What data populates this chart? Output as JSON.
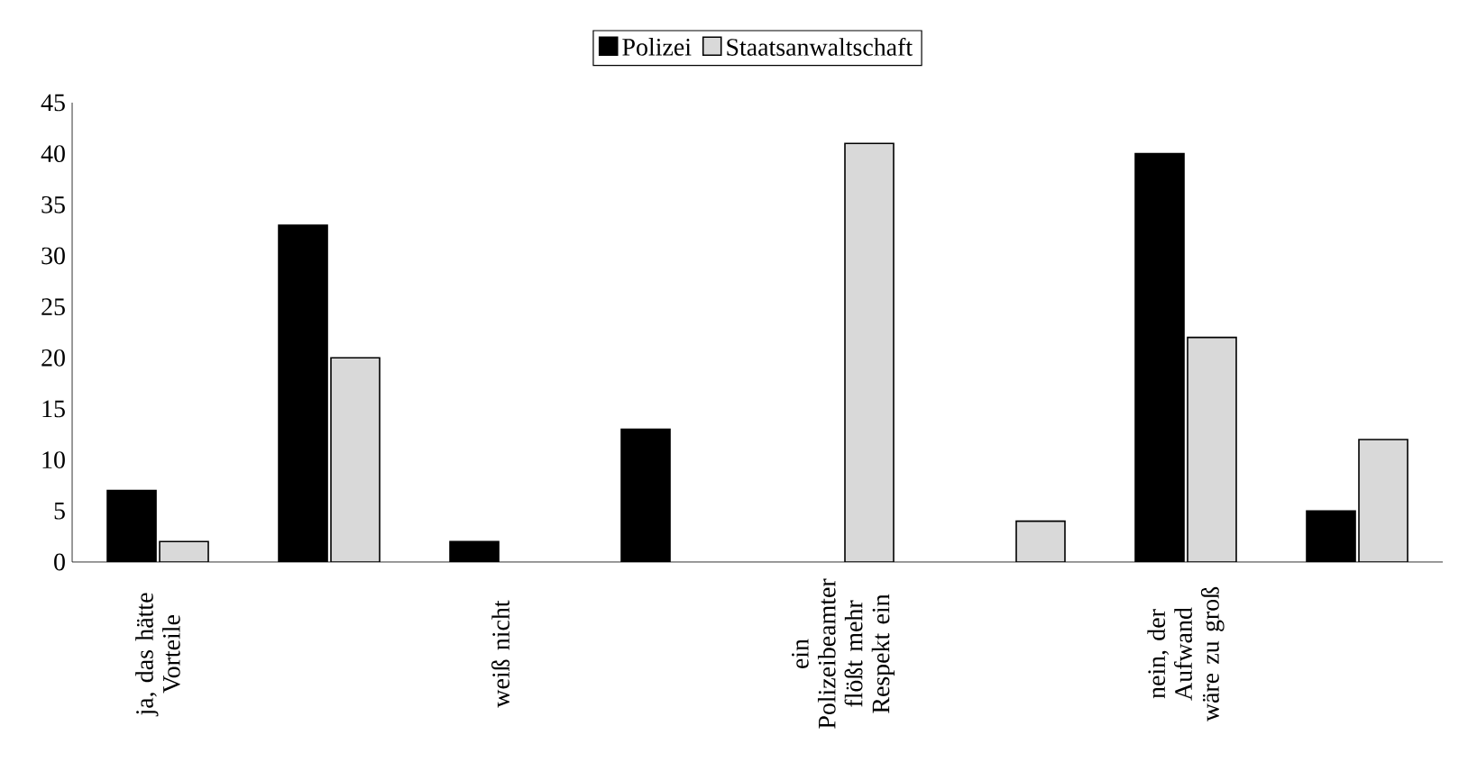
{
  "chart_data": {
    "type": "bar",
    "categories": [
      "ja, das hätte Vorteile",
      null,
      "weiß nicht",
      null,
      "ein Polizeibeamter flößt mehr Respekt ein",
      null,
      "nein, der Aufwand wäre zu groß",
      null
    ],
    "series": [
      {
        "name": "Polizei",
        "color": "#000000",
        "values": [
          7,
          33,
          2,
          13,
          null,
          null,
          40,
          5
        ]
      },
      {
        "name": "Staatsanwaltschaft",
        "color": "#d9d9d9",
        "values": [
          2,
          20,
          null,
          null,
          41,
          4,
          22,
          12
        ]
      }
    ],
    "ylim": [
      0,
      45
    ],
    "yticks": [
      0,
      5,
      10,
      15,
      20,
      25,
      30,
      35,
      40,
      45
    ],
    "grid": false,
    "legend": "top"
  }
}
